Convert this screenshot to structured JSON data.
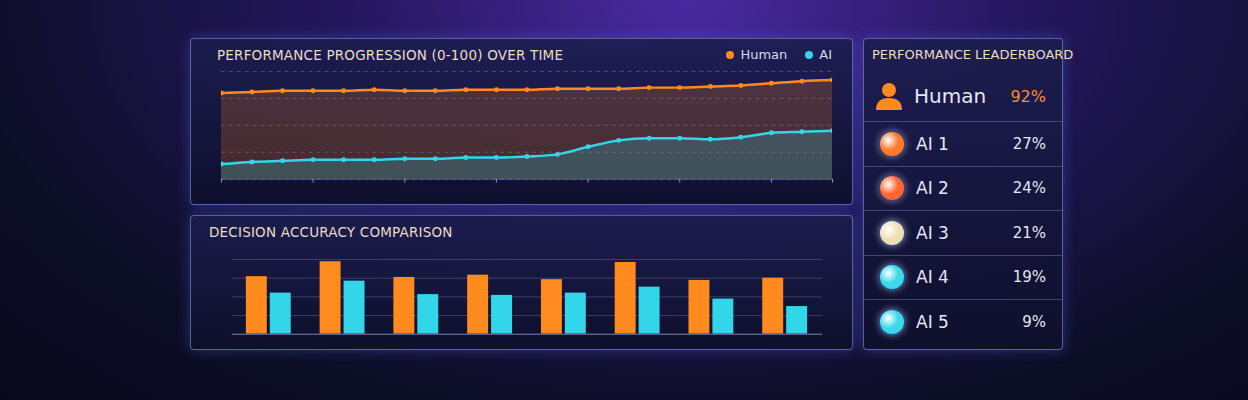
{
  "chart_data": [
    {
      "type": "line",
      "title": "PERFORMANCE PROGRESSION (0-100) OVER TIME",
      "x": [
        0,
        1,
        2,
        3,
        4,
        5,
        6,
        7,
        8,
        9,
        10,
        11,
        12,
        13,
        14,
        15,
        16,
        17,
        18,
        19,
        20
      ],
      "xlim": [
        0,
        20
      ],
      "xticks": [
        0,
        3,
        6,
        9,
        12,
        15,
        18,
        20
      ],
      "ylim": [
        0,
        100
      ],
      "yticks": [
        0,
        25,
        50,
        75,
        100
      ],
      "grid": true,
      "tick_labels": false,
      "legend": "top-right",
      "series": [
        {
          "name": "Human",
          "color": "#ff8a1e",
          "values": [
            80,
            81,
            82,
            82,
            82,
            83,
            82,
            82,
            83,
            83,
            83,
            84,
            84,
            84,
            85,
            85,
            86,
            87,
            89,
            91,
            92
          ]
        },
        {
          "name": "AI",
          "color": "#33d6e8",
          "values": [
            14,
            16,
            17,
            18,
            18,
            18,
            19,
            19,
            20,
            20,
            21,
            23,
            30,
            36,
            38,
            38,
            37,
            39,
            43,
            44,
            45
          ]
        }
      ]
    },
    {
      "type": "bar",
      "title": "DECISION ACCURACY COMPARISON",
      "categories": [
        null,
        null,
        null,
        null,
        null,
        null,
        null,
        null
      ],
      "ylim": [
        0,
        100
      ],
      "yticks": [
        0,
        25,
        50,
        75,
        100
      ],
      "grid": true,
      "tick_labels": false,
      "series": [
        {
          "name": "Human",
          "color": "#ff8a1e",
          "values": [
            77,
            97,
            76,
            79,
            73,
            96,
            72,
            75
          ]
        },
        {
          "name": "AI",
          "color": "#33d6e8",
          "values": [
            55,
            71,
            53,
            52,
            55,
            63,
            47,
            37
          ]
        }
      ]
    }
  ],
  "leaderboard": {
    "title": "PERFORMANCE LEADERBOARD",
    "rows": [
      {
        "name": "Human",
        "score": "92%"
      },
      {
        "name": "AI 1",
        "score": "27%"
      },
      {
        "name": "AI 2",
        "score": "24%"
      },
      {
        "name": "AI 3",
        "score": "21%"
      },
      {
        "name": "AI 4",
        "score": "19%"
      },
      {
        "name": "AI 5",
        "score": "9%"
      }
    ]
  }
}
